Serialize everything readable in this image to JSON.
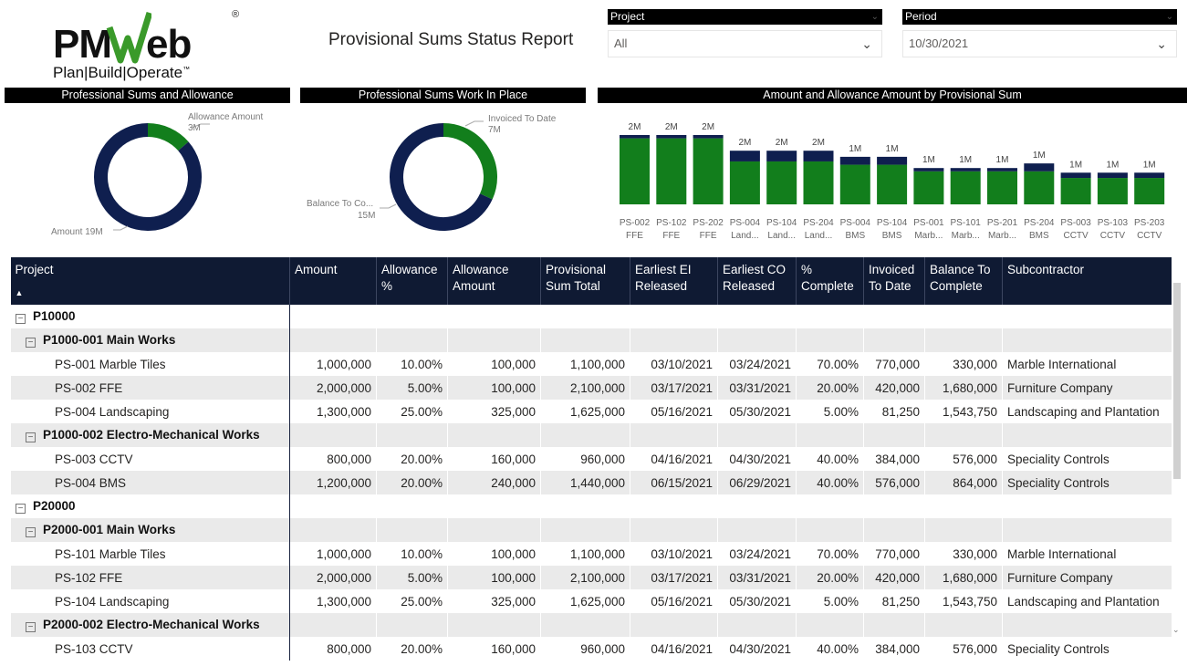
{
  "logo": {
    "main_left": "PM",
    "main_right": "eb",
    "swoosh_letter": "W",
    "registered": "®",
    "tagline": "Plan|Build|Operate",
    "trademark": "™"
  },
  "report_title": "Provisional Sums Status Report",
  "filters": {
    "project": {
      "label": "Project",
      "value": "All"
    },
    "period": {
      "label": "Period",
      "value": "10/30/2021"
    }
  },
  "visuals": {
    "donut1": {
      "title": "Professional Sums and Allowance",
      "segments": [
        {
          "name": "Allowance Amount",
          "value_label": "3M",
          "value": 3
        },
        {
          "name": "Amount",
          "value_label": "19M",
          "value": 19
        }
      ]
    },
    "donut2": {
      "title": "Professional Sums Work In Place",
      "segments": [
        {
          "name": "Invoiced To Date",
          "value_label": "7M",
          "value": 7
        },
        {
          "name": "Balance To Co...",
          "value_label": "15M",
          "value": 15
        }
      ]
    },
    "bars_title": "Amount and Allowance Amount by Provisional Sum"
  },
  "colors": {
    "navy": "#0f1f4f",
    "green": "#127e1c",
    "header": "#0f1a33"
  },
  "chart_data": {
    "type": "bar",
    "title": "Amount and Allowance Amount by Provisional Sum",
    "categories": [
      [
        "PS-002",
        "FFE"
      ],
      [
        "PS-102",
        "FFE"
      ],
      [
        "PS-202",
        "FFE"
      ],
      [
        "PS-004",
        "Land..."
      ],
      [
        "PS-104",
        "Land..."
      ],
      [
        "PS-204",
        "Land..."
      ],
      [
        "PS-004",
        "BMS"
      ],
      [
        "PS-104",
        "BMS"
      ],
      [
        "PS-001",
        "Marb..."
      ],
      [
        "PS-101",
        "Marb..."
      ],
      [
        "PS-201",
        "Marb..."
      ],
      [
        "PS-204",
        "BMS"
      ],
      [
        "PS-003",
        "CCTV"
      ],
      [
        "PS-103",
        "CCTV"
      ],
      [
        "PS-203",
        "CCTV"
      ]
    ],
    "data_labels": [
      "2M",
      "2M",
      "2M",
      "2M",
      "2M",
      "2M",
      "1M",
      "1M",
      "1M",
      "1M",
      "1M",
      "1M",
      "1M",
      "1M",
      "1M"
    ],
    "series": [
      {
        "name": "Amount",
        "values": [
          2000000,
          2000000,
          2000000,
          1300000,
          1300000,
          1300000,
          1200000,
          1200000,
          1000000,
          1000000,
          1000000,
          1000000,
          800000,
          800000,
          800000
        ]
      },
      {
        "name": "Allowance Amount",
        "values": [
          100000,
          100000,
          100000,
          325000,
          325000,
          325000,
          240000,
          240000,
          100000,
          100000,
          100000,
          240000,
          160000,
          160000,
          160000
        ]
      }
    ],
    "ylim": [
      0,
      2100000
    ]
  },
  "table": {
    "columns": [
      "Project",
      "Amount",
      "Allowance %",
      "Allowance Amount",
      "Provisional Sum Total",
      "Earliest EI Released",
      "Earliest CO Released",
      "% Complete",
      "Invoiced To Date",
      "Balance To Complete",
      "Subcontractor"
    ],
    "rows": [
      {
        "level": 0,
        "label": "P10000",
        "cells": []
      },
      {
        "level": 1,
        "label": "P1000-001 Main Works",
        "cells": []
      },
      {
        "level": 2,
        "label": "PS-001 Marble Tiles",
        "cells": [
          "1,000,000",
          "10.00%",
          "100,000",
          "1,100,000",
          "03/10/2021",
          "03/24/2021",
          "70.00%",
          "770,000",
          "330,000",
          "Marble International"
        ]
      },
      {
        "level": 2,
        "label": "PS-002 FFE",
        "cells": [
          "2,000,000",
          "5.00%",
          "100,000",
          "2,100,000",
          "03/17/2021",
          "03/31/2021",
          "20.00%",
          "420,000",
          "1,680,000",
          "Furniture Company"
        ]
      },
      {
        "level": 2,
        "label": "PS-004 Landscaping",
        "cells": [
          "1,300,000",
          "25.00%",
          "325,000",
          "1,625,000",
          "05/16/2021",
          "05/30/2021",
          "5.00%",
          "81,250",
          "1,543,750",
          "Landscaping and Plantation"
        ]
      },
      {
        "level": 1,
        "label": "P1000-002 Electro-Mechanical Works",
        "cells": []
      },
      {
        "level": 2,
        "label": "PS-003 CCTV",
        "cells": [
          "800,000",
          "20.00%",
          "160,000",
          "960,000",
          "04/16/2021",
          "04/30/2021",
          "40.00%",
          "384,000",
          "576,000",
          "Speciality Controls"
        ]
      },
      {
        "level": 2,
        "label": "PS-004 BMS",
        "cells": [
          "1,200,000",
          "20.00%",
          "240,000",
          "1,440,000",
          "06/15/2021",
          "06/29/2021",
          "40.00%",
          "576,000",
          "864,000",
          "Speciality Controls"
        ]
      },
      {
        "level": 0,
        "label": "P20000",
        "cells": []
      },
      {
        "level": 1,
        "label": "P2000-001 Main Works",
        "cells": []
      },
      {
        "level": 2,
        "label": "PS-101 Marble Tiles",
        "cells": [
          "1,000,000",
          "10.00%",
          "100,000",
          "1,100,000",
          "03/10/2021",
          "03/24/2021",
          "70.00%",
          "770,000",
          "330,000",
          "Marble International"
        ]
      },
      {
        "level": 2,
        "label": "PS-102 FFE",
        "cells": [
          "2,000,000",
          "5.00%",
          "100,000",
          "2,100,000",
          "03/17/2021",
          "03/31/2021",
          "20.00%",
          "420,000",
          "1,680,000",
          "Furniture Company"
        ]
      },
      {
        "level": 2,
        "label": "PS-104 Landscaping",
        "cells": [
          "1,300,000",
          "25.00%",
          "325,000",
          "1,625,000",
          "05/16/2021",
          "05/30/2021",
          "5.00%",
          "81,250",
          "1,543,750",
          "Landscaping and Plantation"
        ]
      },
      {
        "level": 1,
        "label": "P2000-002 Electro-Mechanical Works",
        "cells": []
      },
      {
        "level": 2,
        "label": "PS-103 CCTV",
        "cells": [
          "800,000",
          "20.00%",
          "160,000",
          "960,000",
          "04/16/2021",
          "04/30/2021",
          "40.00%",
          "384,000",
          "576,000",
          "Speciality Controls"
        ]
      }
    ]
  }
}
